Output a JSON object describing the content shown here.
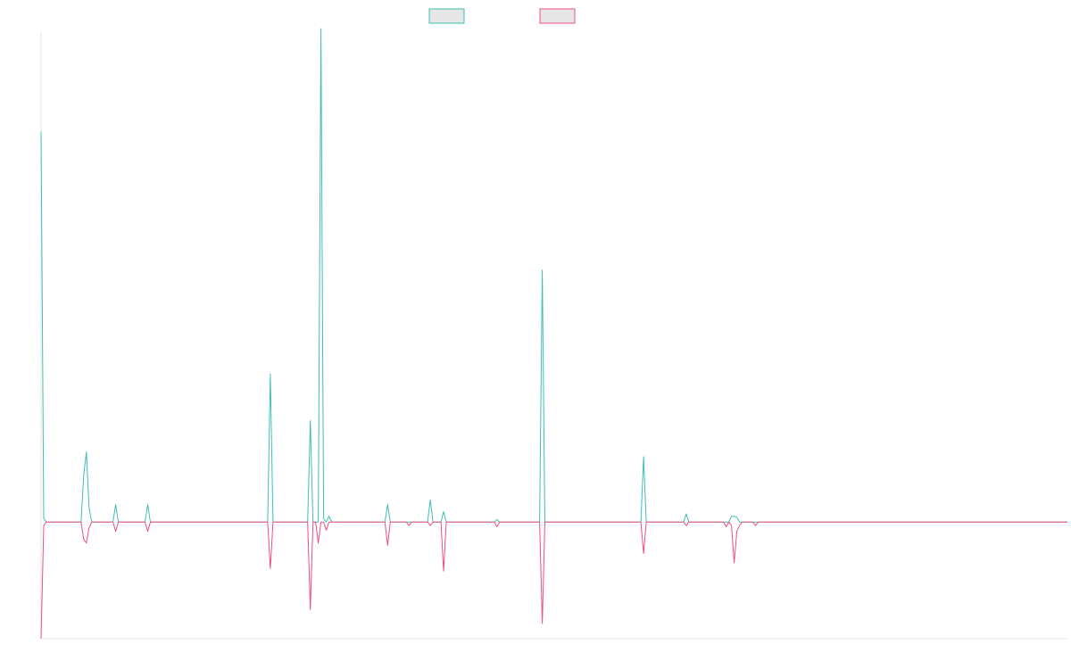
{
  "chart_data": {
    "type": "line",
    "title": "",
    "xlabel": "",
    "ylabel": "",
    "grid": false,
    "legend_position": "top-center",
    "x": [
      0,
      1,
      2,
      15,
      16,
      17,
      18,
      19,
      27,
      28,
      29,
      39,
      40,
      41,
      42,
      85,
      86,
      87,
      100,
      101,
      102,
      103,
      104,
      105,
      106,
      107,
      108,
      109,
      110,
      111,
      112,
      113,
      129,
      130,
      131,
      137,
      138,
      139,
      145,
      146,
      147,
      150,
      151,
      152,
      170,
      171,
      172,
      187,
      188,
      189,
      225,
      226,
      227,
      241,
      242,
      243,
      256,
      257,
      258,
      259,
      260,
      261,
      262,
      263,
      264,
      265,
      266,
      267,
      268,
      269,
      270,
      271,
      272,
      273,
      274,
      275,
      276,
      277,
      385
    ],
    "ylim": [
      -100,
      420
    ],
    "series": [
      {
        "name": "",
        "color": "#3fbfb3",
        "values": [
          335,
          3,
          0,
          0,
          40,
          60,
          12,
          0,
          0,
          15,
          0,
          0,
          15,
          0,
          0,
          0,
          127,
          0,
          0,
          87,
          0,
          0,
          0,
          423,
          3,
          0,
          5,
          0,
          0,
          0,
          0,
          0,
          0,
          15,
          0,
          0,
          0,
          0,
          0,
          19,
          0,
          0,
          9,
          0,
          0,
          2,
          0,
          0,
          216,
          0,
          0,
          56,
          0,
          0,
          7,
          0,
          0,
          0,
          0,
          5,
          5,
          4,
          0,
          0,
          0,
          0,
          0,
          0,
          0,
          0,
          0,
          0,
          0,
          0,
          0,
          0,
          0,
          0,
          0
        ]
      },
      {
        "name": "",
        "color": "#f0507a",
        "values": [
          -100,
          -3,
          0,
          0,
          -15,
          -18,
          -5,
          0,
          0,
          -8,
          0,
          0,
          -8,
          0,
          0,
          0,
          -40,
          0,
          0,
          -75,
          0,
          0,
          -18,
          0,
          0,
          -7,
          0,
          0,
          0,
          0,
          0,
          0,
          0,
          -20,
          0,
          0,
          -3,
          0,
          0,
          -3,
          0,
          0,
          -42,
          0,
          0,
          -4,
          0,
          0,
          -87,
          0,
          0,
          -27,
          0,
          0,
          -3,
          0,
          0,
          -4,
          0,
          -3,
          -35,
          -8,
          -3,
          0,
          0,
          0,
          0,
          0,
          -3,
          0,
          0,
          0,
          0,
          0,
          0,
          0,
          0,
          0,
          0
        ]
      }
    ]
  }
}
